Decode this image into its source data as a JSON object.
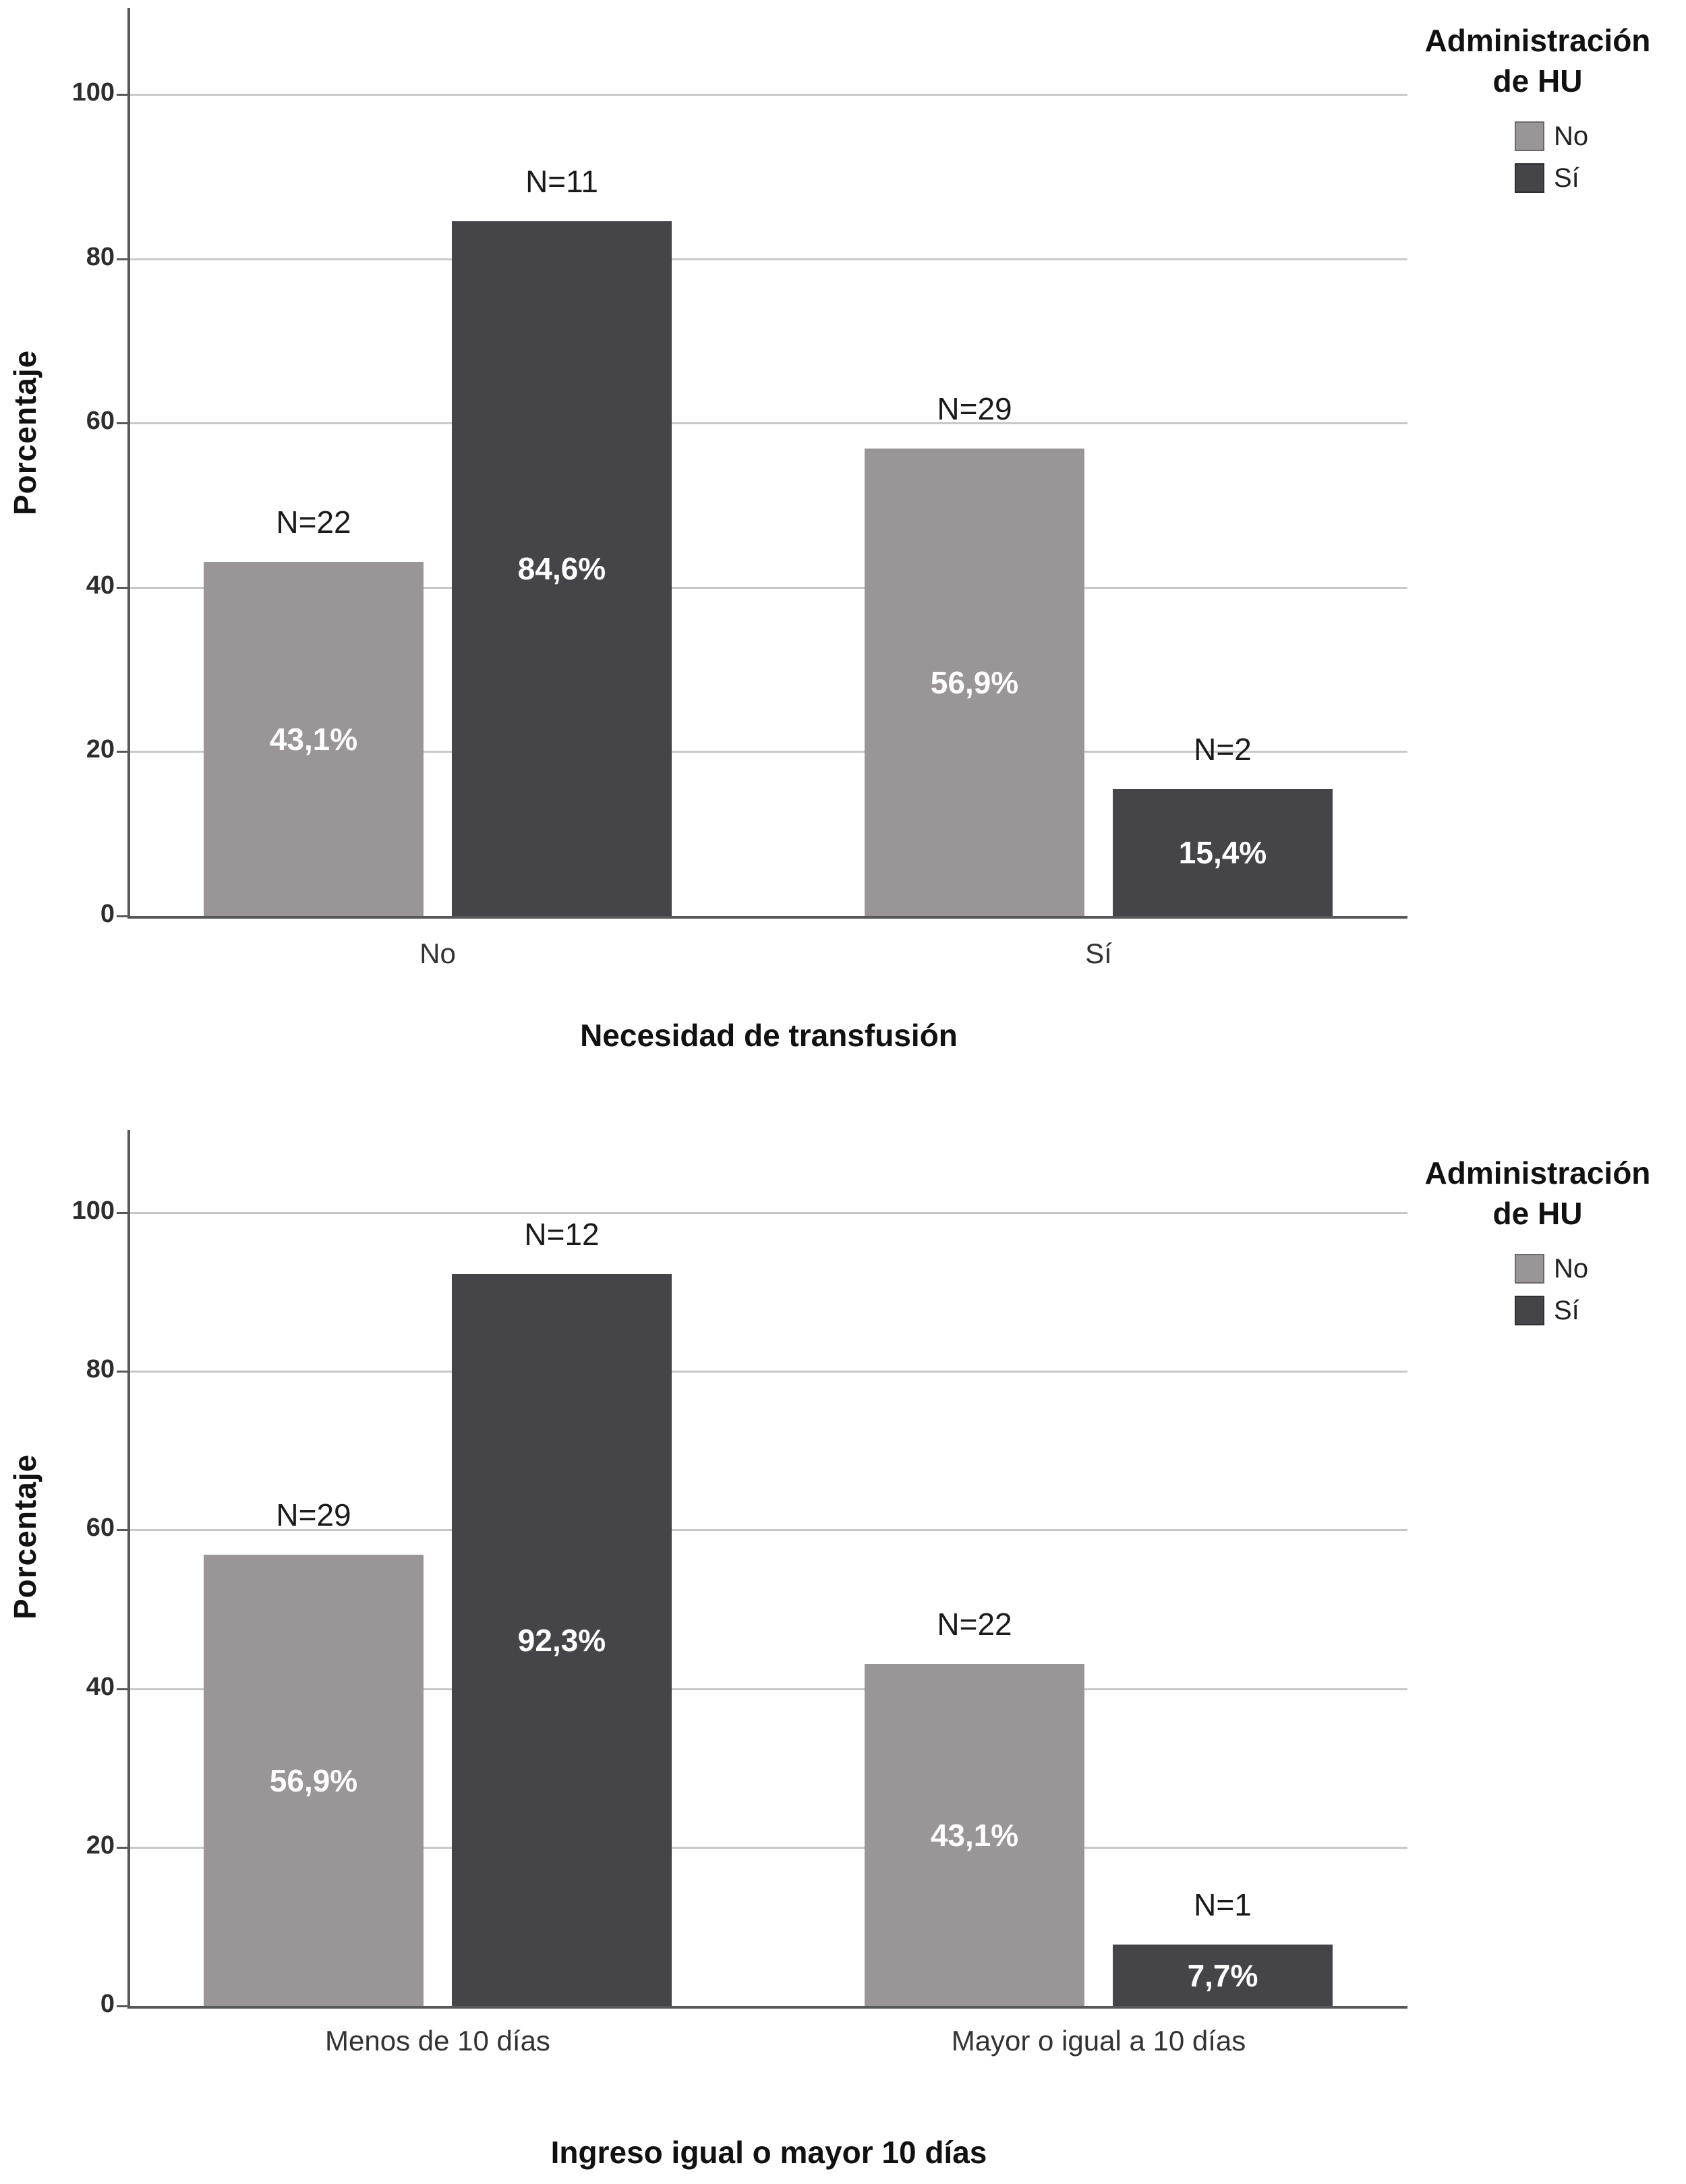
{
  "page": {
    "background": "#ffffff"
  },
  "colors": {
    "axis": "#58585a",
    "grid": "#c8c8c8",
    "bar_no": "#9a9596",
    "bar_si": "#454449",
    "value_text": "#ffffff"
  },
  "chart_data": [
    {
      "type": "bar",
      "title": "",
      "ylabel": "Porcentaje",
      "xlabel": "Necesidad de transfusión",
      "ylim": [
        0,
        110
      ],
      "yticks": [
        0,
        20,
        40,
        60,
        80,
        100
      ],
      "grid": "horizontal",
      "legend_position": "top-right",
      "legend_title_lines": [
        "Administración",
        "de HU"
      ],
      "categories": [
        "No",
        "Sí"
      ],
      "series": [
        {
          "name": "No",
          "color": "#9a9596",
          "values": [
            43.1,
            56.9
          ],
          "value_labels": [
            "43,1%",
            "56,9%"
          ],
          "count_labels": [
            "N=22",
            "N=29"
          ]
        },
        {
          "name": "Sí",
          "color": "#454449",
          "values": [
            84.6,
            15.4
          ],
          "value_labels": [
            "84,6%",
            "15,4%"
          ],
          "count_labels": [
            "N=11",
            "N=2"
          ]
        }
      ]
    },
    {
      "type": "bar",
      "title": "",
      "ylabel": "Porcentaje",
      "xlabel": "Ingreso igual o mayor 10 días",
      "ylim": [
        0,
        110
      ],
      "yticks": [
        0,
        20,
        40,
        60,
        80,
        100
      ],
      "grid": "horizontal",
      "legend_position": "top-right",
      "legend_title_lines": [
        "Administración",
        "de HU"
      ],
      "categories": [
        "Menos de 10 días",
        "Mayor o igual a 10 días"
      ],
      "series": [
        {
          "name": "No",
          "color": "#9a9596",
          "values": [
            56.9,
            43.1
          ],
          "value_labels": [
            "56,9%",
            "43,1%"
          ],
          "count_labels": [
            "N=29",
            "N=22"
          ]
        },
        {
          "name": "Sí",
          "color": "#454449",
          "values": [
            92.3,
            7.7
          ],
          "value_labels": [
            "92,3%",
            "7,7%"
          ],
          "count_labels": [
            "N=12",
            "N=1"
          ]
        }
      ]
    }
  ]
}
